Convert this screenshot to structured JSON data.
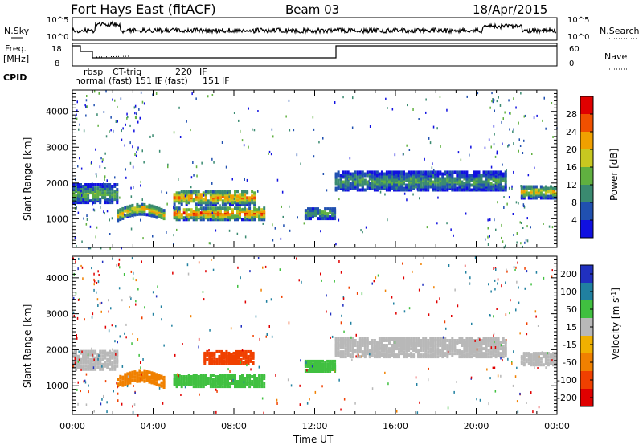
{
  "header": {
    "radar": "Fort Hays East (fitACF)",
    "beam": "Beam 03",
    "date": "18/Apr/2015"
  },
  "top_panels": {
    "nsky_label": "N.Sky",
    "nsky_ticks": [
      "10^5",
      "10^0"
    ],
    "nsearch_label": "N.Search",
    "freq_label_1": "Freq.",
    "freq_label_2": "[MHz]",
    "freq_ticks": [
      "18",
      "8"
    ],
    "nave_ticks": [
      "60",
      "0"
    ],
    "nave_label": "Nave",
    "cpid_label": "CPID",
    "cpid_names": [
      "rbsp",
      "CT-trig",
      "220",
      "IF",
      "normal (fast)",
      "151 IF",
      "1 (fast)",
      "151",
      "IF"
    ]
  },
  "chart_data": [
    {
      "type": "heatmap",
      "title": "",
      "xlabel": "",
      "ylabel": "Slant Range [km]",
      "ylim": [
        200,
        4600
      ],
      "xlim": [
        0,
        24
      ],
      "yticks": [
        "1000",
        "2000",
        "3000",
        "4000"
      ],
      "colorbar": {
        "label": "Power [dB]",
        "ticks": [
          "4",
          "8",
          "12",
          "16",
          "20",
          "24",
          "28"
        ],
        "range": [
          0,
          30
        ],
        "colors": [
          "#1010e0",
          "#2050b0",
          "#3a8a70",
          "#60b040",
          "#c8c820",
          "#f0a000",
          "#f05000",
          "#e00000"
        ]
      },
      "echo_bands": [
        {
          "t_start": 0.0,
          "t_end": 2.2,
          "range_center": 1750,
          "range_width": 500,
          "level": 12
        },
        {
          "t_start": 2.2,
          "t_end": 4.5,
          "range_center": 1150,
          "range_width": 300,
          "level": 18
        },
        {
          "t_start": 5.0,
          "t_end": 9.0,
          "range_center": 1650,
          "range_width": 400,
          "level": 20
        },
        {
          "t_start": 5.0,
          "t_end": 9.5,
          "range_center": 1200,
          "range_width": 350,
          "level": 22
        },
        {
          "t_start": 11.5,
          "t_end": 13.0,
          "range_center": 1200,
          "range_width": 300,
          "level": 10
        },
        {
          "t_start": 13.0,
          "t_end": 21.5,
          "range_center": 2100,
          "range_width": 500,
          "level": 10
        },
        {
          "t_start": 22.2,
          "t_end": 24.0,
          "range_center": 1800,
          "range_width": 350,
          "level": 16
        }
      ]
    },
    {
      "type": "heatmap",
      "title": "",
      "xlabel": "Time UT",
      "ylabel": "Slant Range [km]",
      "ylim": [
        200,
        4600
      ],
      "xlim": [
        0,
        24
      ],
      "xticks": [
        "00:00",
        "04:00",
        "08:00",
        "12:00",
        "16:00",
        "20:00",
        "00:00"
      ],
      "yticks": [
        "1000",
        "2000",
        "3000",
        "4000"
      ],
      "colorbar": {
        "label": "Velocity [m s^-1]",
        "ticks": [
          "200",
          "100",
          "50",
          "15",
          "-15",
          "-50",
          "-100",
          "-200"
        ],
        "range": [
          -250,
          250
        ],
        "colors": [
          "#2030c0",
          "#2080a0",
          "#40c040",
          "#b8b8b8",
          "#f0b000",
          "#f08000",
          "#f04000",
          "#e00000"
        ]
      },
      "echo_bands": [
        {
          "t_start": 0.0,
          "t_end": 2.2,
          "range_center": 1750,
          "range_width": 500,
          "velocity": 0
        },
        {
          "t_start": 2.2,
          "t_end": 4.5,
          "range_center": 1150,
          "range_width": 300,
          "velocity": -30
        },
        {
          "t_start": 6.5,
          "t_end": 9.0,
          "range_center": 1850,
          "range_width": 350,
          "velocity": -80
        },
        {
          "t_start": 5.0,
          "t_end": 9.5,
          "range_center": 1200,
          "range_width": 350,
          "velocity": 60
        },
        {
          "t_start": 11.5,
          "t_end": 13.0,
          "range_center": 1600,
          "range_width": 300,
          "velocity": 60
        },
        {
          "t_start": 13.0,
          "t_end": 21.5,
          "range_center": 2100,
          "range_width": 500,
          "velocity": 0
        },
        {
          "t_start": 22.2,
          "t_end": 24.0,
          "range_center": 1800,
          "range_width": 350,
          "velocity": 0
        }
      ]
    }
  ]
}
